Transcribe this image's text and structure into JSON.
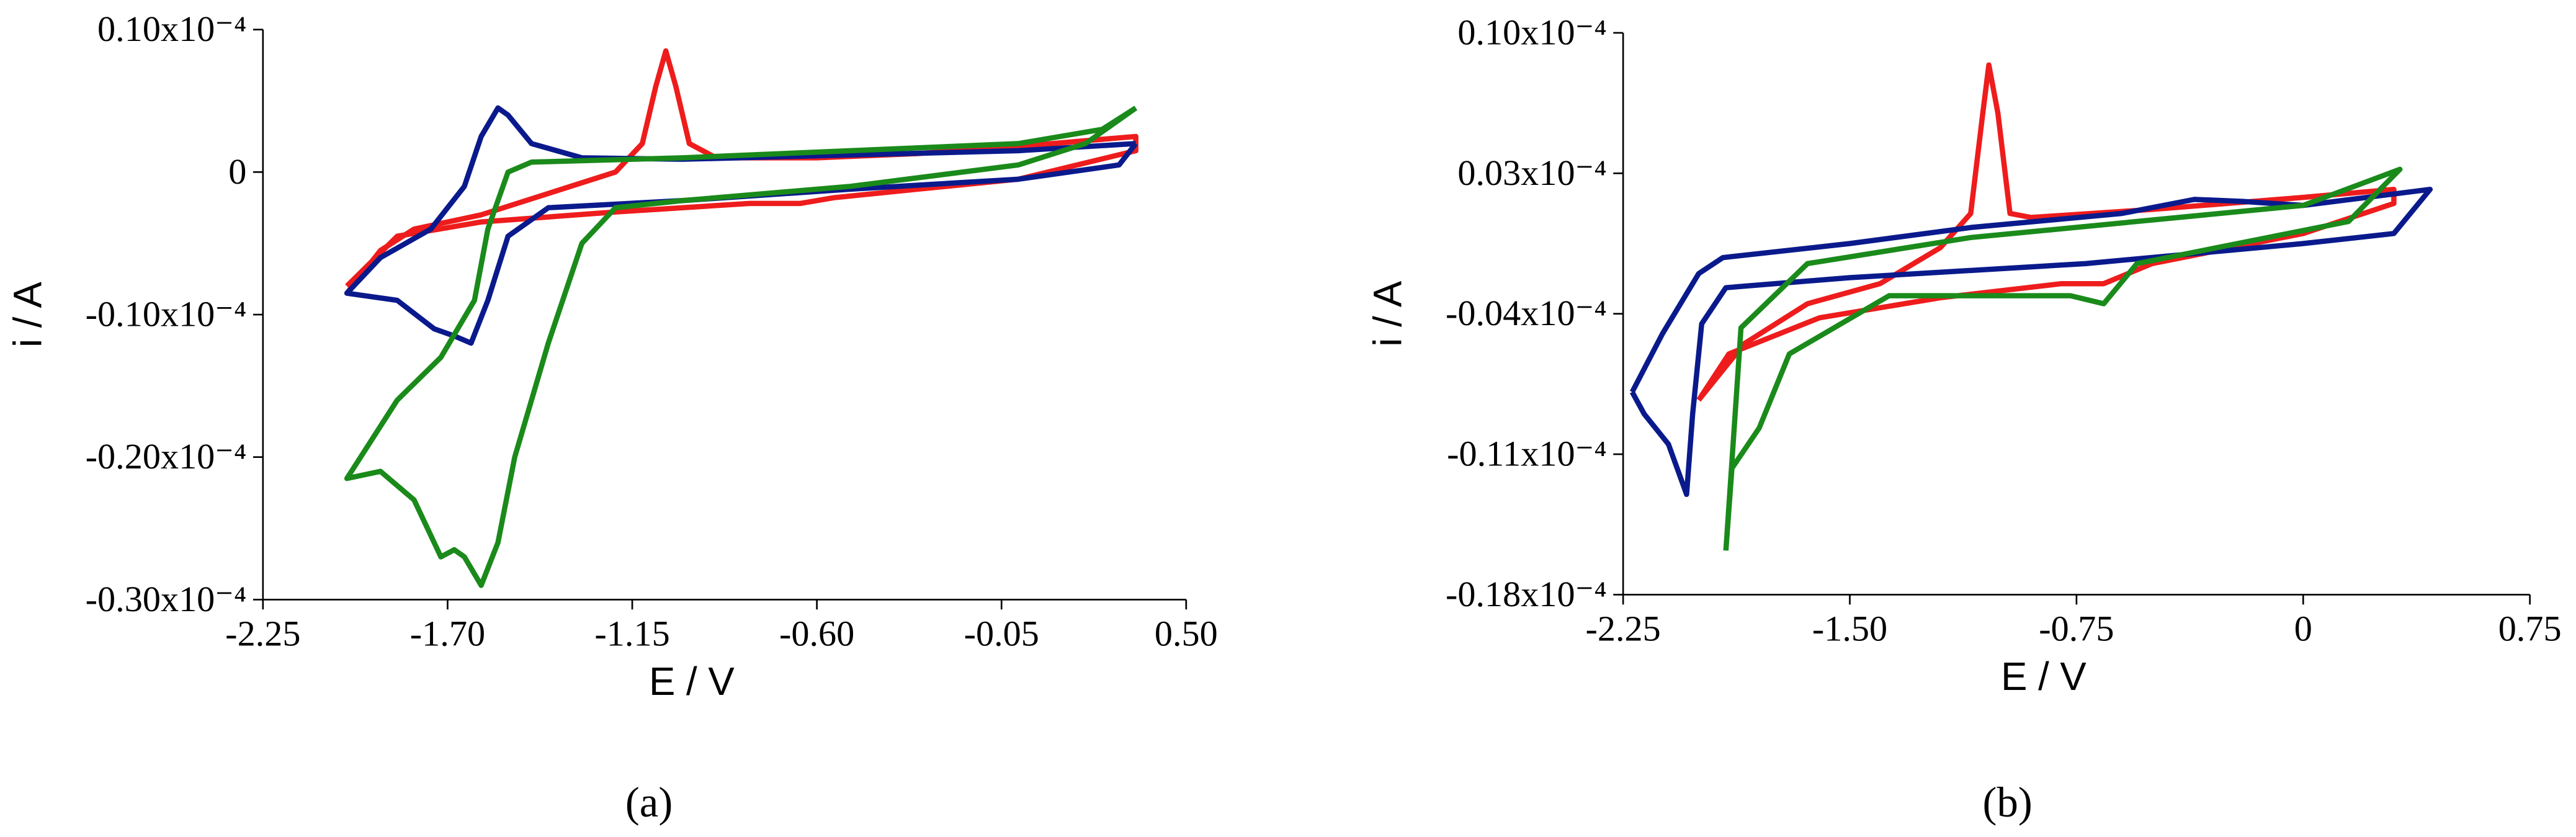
{
  "chart_data": [
    {
      "type": "line",
      "x_label": "E / V",
      "y_label": "i / A",
      "caption": "(a)",
      "xlim": [
        -2.25,
        0.5
      ],
      "ylim": [
        -3e-05,
        1e-05
      ],
      "xticks": [
        -2.25,
        {
          "value": -1.7,
          "label": "-1.70"
        },
        -1.15,
        {
          "value": -0.6,
          "label": "-0.60"
        },
        -0.05,
        {
          "value": 0.5,
          "label": "0.50"
        }
      ],
      "yticks": [
        {
          "value": -3e-05,
          "label": "-0.30x10⁻⁴"
        },
        {
          "value": -2e-05,
          "label": "-0.20x10⁻⁴"
        },
        {
          "value": -1e-05,
          "label": "-0.10x10⁻⁴"
        },
        0,
        {
          "value": 1e-05,
          "label": "0.10x10⁻⁴"
        }
      ],
      "series": [
        {
          "color": "#ee1c1c",
          "x": [
            -2.0,
            -1.9,
            -1.8,
            -1.6,
            -1.4,
            -1.2,
            -1.12,
            -1.08,
            -1.05,
            -1.02,
            -0.98,
            -0.9,
            -0.6,
            -0.3,
            0.0,
            0.35,
            0.35,
            0.0,
            -0.3,
            -0.55,
            -0.65,
            -0.8,
            -1.2,
            -1.6,
            -1.85,
            -2.0
          ],
          "values": [
            -8.5e-06,
            -5.5e-06,
            -4e-06,
            -3e-06,
            -1.5e-06,
            0.0,
            2e-06,
            6e-06,
            8.5e-06,
            6e-06,
            2e-06,
            1e-06,
            1e-06,
            1.3e-06,
            1.8e-06,
            2.5e-06,
            1.5e-06,
            -5e-07,
            -1.2e-06,
            -1.8e-06,
            -2.2e-06,
            -2.2e-06,
            -2.8e-06,
            -3.5e-06,
            -4.5e-06,
            -8e-06
          ]
        },
        {
          "color": "#0a1a8c",
          "x": [
            0.35,
            0.0,
            -0.5,
            -1.0,
            -1.3,
            -1.45,
            -1.52,
            -1.55,
            -1.6,
            -1.65,
            -1.75,
            -1.9,
            -2.0,
            -1.85,
            -1.74,
            -1.68,
            -1.63,
            -1.58,
            -1.52,
            -1.4,
            -1.0,
            -0.5,
            0.0,
            0.3,
            0.35
          ],
          "values": [
            2e-06,
            1.5e-06,
            1.2e-06,
            9e-07,
            1e-06,
            2e-06,
            4e-06,
            4.5e-06,
            2.5e-06,
            -1e-06,
            -4e-06,
            -6e-06,
            -8.5e-06,
            -9e-06,
            -1.1e-05,
            -1.15e-05,
            -1.2e-05,
            -9e-06,
            -4.5e-06,
            -2.5e-06,
            -2e-06,
            -1.2e-06,
            -5e-07,
            5e-07,
            2e-06
          ]
        },
        {
          "color": "#1a8a1a",
          "x": [
            0.35,
            0.2,
            0.0,
            -0.5,
            -1.0,
            -1.2,
            -1.3,
            -1.4,
            -1.5,
            -1.55,
            -1.6,
            -1.65,
            -1.68,
            -1.72,
            -1.8,
            -1.9,
            -2.0,
            -1.85,
            -1.72,
            -1.62,
            -1.58,
            -1.52,
            -1.45,
            -1.0,
            -0.5,
            0.0,
            0.25,
            0.35
          ],
          "values": [
            4.5e-06,
            2e-06,
            5e-07,
            -1e-06,
            -2e-06,
            -2.5e-06,
            -5e-06,
            -1.2e-05,
            -2e-05,
            -2.6e-05,
            -2.9e-05,
            -2.7e-05,
            -2.65e-05,
            -2.7e-05,
            -2.3e-05,
            -2.1e-05,
            -2.15e-05,
            -1.6e-05,
            -1.3e-05,
            -9e-06,
            -4e-06,
            0.0,
            7e-07,
            1e-06,
            1.5e-06,
            2e-06,
            3e-06,
            4.5e-06
          ]
        }
      ]
    },
    {
      "type": "line",
      "x_label": "E / V",
      "y_label": "i / A",
      "caption": "(b)",
      "xlim": [
        -2.25,
        0.75
      ],
      "ylim": [
        -1.8e-05,
        1e-05
      ],
      "xticks": [
        -2.25,
        {
          "value": -1.5,
          "label": "-1.50"
        },
        -0.75,
        0,
        0.75
      ],
      "yticks": [
        {
          "value": -1.8e-05,
          "label": "-0.18x10⁻⁴"
        },
        {
          "value": -1.1e-05,
          "label": "-0.11x10⁻⁴"
        },
        {
          "value": -4e-06,
          "label": "-0.04x10⁻⁴"
        },
        {
          "value": 3e-06,
          "label": "0.03x10⁻⁴"
        },
        {
          "value": 1e-05,
          "label": "0.10x10⁻⁴"
        }
      ],
      "series": [
        {
          "color": "#ee1c1c",
          "x": [
            -2.0,
            -1.85,
            -1.64,
            -1.4,
            -1.2,
            -1.1,
            -1.06,
            -1.04,
            -1.01,
            -0.97,
            -0.9,
            -0.5,
            0.0,
            0.3,
            0.3,
            0.0,
            -0.5,
            -0.66,
            -0.8,
            -1.2,
            -1.6,
            -1.9,
            -2.0
          ],
          "values": [
            -8.3e-06,
            -5.5e-06,
            -3.5e-06,
            -2.5e-06,
            -7e-07,
            1e-06,
            6e-06,
            8.4e-06,
            6e-06,
            1e-06,
            8e-07,
            1.2e-06,
            1.8e-06,
            2.2e-06,
            1.5e-06,
            0.0,
            -1.5e-06,
            -2.5e-06,
            -2.5e-06,
            -3.2e-06,
            -4.2e-06,
            -6e-06,
            -8.3e-06
          ]
        },
        {
          "color": "#0a1a8c",
          "x": [
            -2.22,
            -2.12,
            -2.0,
            -1.92,
            -1.5,
            -1.1,
            -0.6,
            -0.36,
            -0.2,
            0.0,
            0.42,
            0.3,
            0.0,
            -0.72,
            -1.5,
            -1.91,
            -1.99,
            -2.02,
            -2.04,
            -2.1,
            -2.18,
            -2.22
          ],
          "values": [
            -7.9e-06,
            -5e-06,
            -2e-06,
            -1.2e-06,
            -5e-07,
            3e-07,
            1e-06,
            1.7e-06,
            1.6e-06,
            1.4e-06,
            2.2e-06,
            0.0,
            -5e-07,
            -1.5e-06,
            -2.2e-06,
            -2.7e-06,
            -4.5e-06,
            -9e-06,
            -1.3e-05,
            -1.05e-05,
            -9e-06,
            -7.9e-06
          ]
        },
        {
          "color": "#1a8a1a",
          "x": [
            -1.91,
            -1.86,
            -1.64,
            -1.1,
            0.0,
            0.32,
            0.15,
            -0.55,
            -0.66,
            -0.77,
            -1.37,
            -1.7,
            -1.8,
            -1.89,
            -1.91
          ],
          "values": [
            -1.58e-05,
            -4.7e-06,
            -1.5e-06,
            -2e-07,
            1.4e-06,
            3.2e-06,
            6e-07,
            -1.5e-06,
            -3.5e-06,
            -3.1e-06,
            -3.1e-06,
            -6e-06,
            -9.7e-06,
            -1.17e-05,
            -1.58e-05
          ]
        }
      ]
    }
  ]
}
